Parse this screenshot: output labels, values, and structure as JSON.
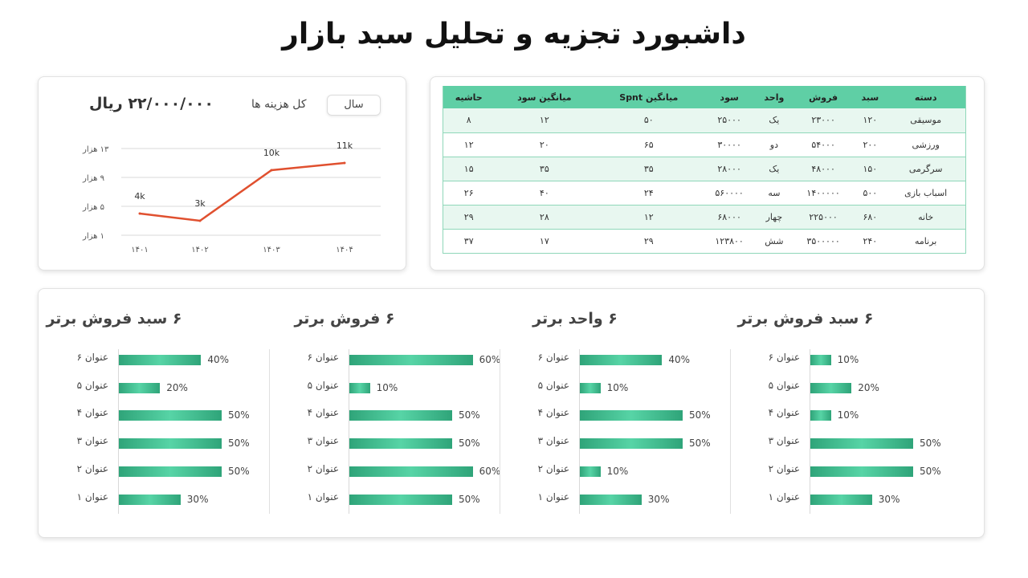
{
  "title": "داشبورد تجزیه و تحلیل سبد بازار",
  "colors": {
    "accent": "#5fcfa5",
    "line": "#e0502f",
    "bar": "#2fa479"
  },
  "line_card": {
    "select_label": "سال",
    "total_label": "کل هزینه ها",
    "total_amount": "۲۲/۰۰۰/۰۰۰  ریال"
  },
  "chart_data": [
    {
      "type": "line",
      "categories": [
        "۱۴۰۱",
        "۱۴۰۲",
        "۱۴۰۳",
        "۱۴۰۴"
      ],
      "values": [
        4,
        3,
        10,
        11
      ],
      "data_labels": [
        "4k",
        "3k",
        "10k",
        "11k"
      ],
      "y_ticks": [
        1,
        5,
        9,
        13
      ],
      "y_tick_labels": [
        "۱ هزار",
        "۵ هزار",
        "۹ هزار",
        "۱۳ هزار"
      ],
      "ylim": [
        1,
        13
      ],
      "grid": true
    },
    {
      "type": "bar",
      "title": "۶ سبد فروش برتر",
      "categories": [
        "عنوان ۶",
        "عنوان ۵",
        "عنوان ۴",
        "عنوان ۳",
        "عنوان ۲",
        "عنوان ۱"
      ],
      "values": [
        10,
        20,
        10,
        50,
        50,
        30
      ],
      "value_labels": [
        "10%",
        "20%",
        "10%",
        "50%",
        "50%",
        "30%"
      ]
    },
    {
      "type": "bar",
      "title": "۶ واحد برتر",
      "categories": [
        "عنوان ۶",
        "عنوان ۵",
        "عنوان ۴",
        "عنوان ۳",
        "عنوان ۲",
        "عنوان ۱"
      ],
      "values": [
        40,
        10,
        50,
        50,
        10,
        30
      ],
      "value_labels": [
        "40%",
        "10%",
        "50%",
        "50%",
        "10%",
        "30%"
      ]
    },
    {
      "type": "bar",
      "title": "۶ فروش برتر",
      "categories": [
        "عنوان ۶",
        "عنوان ۵",
        "عنوان ۴",
        "عنوان ۳",
        "عنوان ۲",
        "عنوان ۱"
      ],
      "values": [
        60,
        10,
        50,
        50,
        60,
        50
      ],
      "value_labels": [
        "60%",
        "10%",
        "50%",
        "50%",
        "60%",
        "50%"
      ]
    },
    {
      "type": "bar",
      "title": "۶ سبد فروش برتر",
      "categories": [
        "عنوان ۶",
        "عنوان ۵",
        "عنوان ۴",
        "عنوان ۳",
        "عنوان ۲",
        "عنوان ۱"
      ],
      "values": [
        40,
        20,
        50,
        50,
        50,
        30
      ],
      "value_labels": [
        "40%",
        "20%",
        "50%",
        "50%",
        "50%",
        "30%"
      ]
    }
  ],
  "table": {
    "headers": [
      "دسته",
      "سبد",
      "فروش",
      "واحد",
      "سود",
      "میانگین Spnt",
      "میانگین سود",
      "حاشیه"
    ],
    "rows": [
      [
        "موسیقی",
        "۱۲۰",
        "۲۳۰۰۰",
        "یک",
        "۲۵۰۰۰",
        "۵۰",
        "۱۲",
        "۸"
      ],
      [
        "ورزشی",
        "۲۰۰",
        "۵۴۰۰۰",
        "دو",
        "۳۰۰۰۰",
        "۶۵",
        "۲۰",
        "۱۲"
      ],
      [
        "سرگرمی",
        "۱۵۰",
        "۴۸۰۰۰",
        "یک",
        "۲۸۰۰۰",
        "۳۵",
        "۳۵",
        "۱۵"
      ],
      [
        "اسباب بازی",
        "۵۰۰",
        "۱۴۰۰۰۰۰",
        "سه",
        "۵۶۰۰۰۰",
        "۲۴",
        "۴۰",
        "۲۶"
      ],
      [
        "خانه",
        "۶۸۰",
        "۲۲۵۰۰۰",
        "چهار",
        "۶۸۰۰۰",
        "۱۲",
        "۲۸",
        "۲۹"
      ],
      [
        "برنامه",
        "۲۴۰",
        "۳۵۰۰۰۰۰",
        "شش",
        "۱۲۳۸۰۰",
        "۲۹",
        "۱۷",
        "۳۷"
      ]
    ]
  }
}
